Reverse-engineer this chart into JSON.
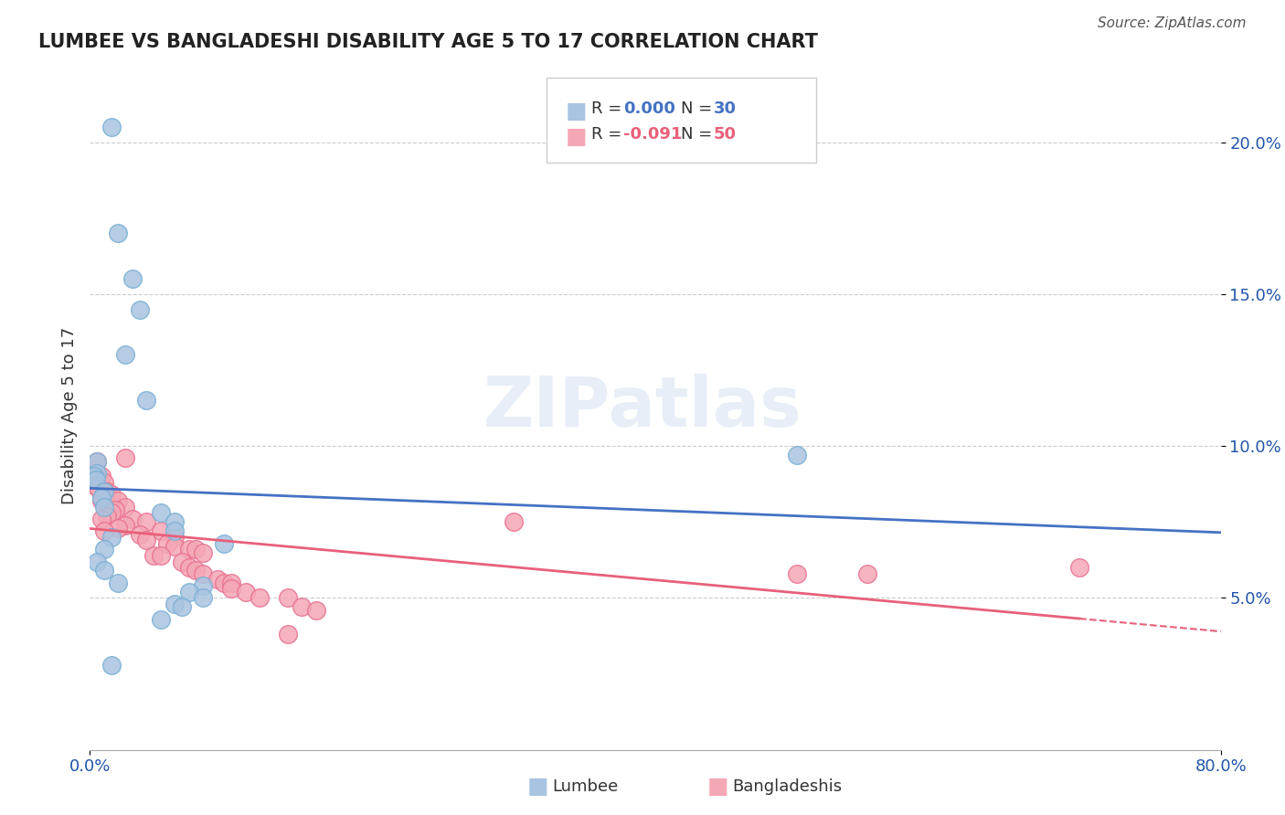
{
  "title": "LUMBEE VS BANGLADESHI DISABILITY AGE 5 TO 17 CORRELATION CHART",
  "source": "Source: ZipAtlas.com",
  "xlabel_label": "Lumbee",
  "xlabel_label2": "Bangladeshis",
  "ylabel": "Disability Age 5 to 17",
  "xlim": [
    0.0,
    0.8
  ],
  "ylim": [
    0.0,
    0.22
  ],
  "xticks": [
    0.0,
    0.1,
    0.2,
    0.3,
    0.4,
    0.5,
    0.6,
    0.7,
    0.8
  ],
  "xticklabels": [
    "0.0%",
    "",
    "",
    "",
    "",
    "",
    "",
    "",
    "80.0%"
  ],
  "yticks": [
    0.0,
    0.05,
    0.1,
    0.15,
    0.2
  ],
  "yticklabels": [
    "",
    "5.0%",
    "10.0%",
    "15.0%",
    "20.0%"
  ],
  "grid_color": "#cccccc",
  "background_color": "#ffffff",
  "lumbee_color": "#a8c4e0",
  "lumbee_edge_color": "#7aafd4",
  "bangladeshi_color": "#f4a7b5",
  "bangladeshi_edge_color": "#e87090",
  "trendline_lumbee_color": "#4472c4",
  "trendline_bangladeshi_color": "#e8607a",
  "R_lumbee": 0.0,
  "N_lumbee": 30,
  "R_bangladeshi": -0.091,
  "N_bangladeshi": 50,
  "lumbee_points": [
    [
      0.015,
      0.205
    ],
    [
      0.02,
      0.17
    ],
    [
      0.03,
      0.155
    ],
    [
      0.035,
      0.145
    ],
    [
      0.025,
      0.13
    ],
    [
      0.04,
      0.115
    ],
    [
      0.005,
      0.095
    ],
    [
      0.005,
      0.091
    ],
    [
      0.003,
      0.09
    ],
    [
      0.004,
      0.089
    ],
    [
      0.01,
      0.085
    ],
    [
      0.008,
      0.083
    ],
    [
      0.01,
      0.08
    ],
    [
      0.05,
      0.078
    ],
    [
      0.06,
      0.075
    ],
    [
      0.06,
      0.072
    ],
    [
      0.015,
      0.07
    ],
    [
      0.095,
      0.068
    ],
    [
      0.01,
      0.066
    ],
    [
      0.005,
      0.062
    ],
    [
      0.01,
      0.059
    ],
    [
      0.02,
      0.055
    ],
    [
      0.08,
      0.054
    ],
    [
      0.07,
      0.052
    ],
    [
      0.08,
      0.05
    ],
    [
      0.06,
      0.048
    ],
    [
      0.065,
      0.047
    ],
    [
      0.05,
      0.043
    ],
    [
      0.015,
      0.028
    ],
    [
      0.5,
      0.097
    ]
  ],
  "bangladeshi_points": [
    [
      0.005,
      0.095
    ],
    [
      0.008,
      0.09
    ],
    [
      0.01,
      0.088
    ],
    [
      0.003,
      0.087
    ],
    [
      0.006,
      0.086
    ],
    [
      0.012,
      0.085
    ],
    [
      0.015,
      0.084
    ],
    [
      0.01,
      0.083
    ],
    [
      0.008,
      0.082
    ],
    [
      0.02,
      0.082
    ],
    [
      0.025,
      0.08
    ],
    [
      0.018,
      0.079
    ],
    [
      0.015,
      0.078
    ],
    [
      0.012,
      0.077
    ],
    [
      0.008,
      0.076
    ],
    [
      0.03,
      0.076
    ],
    [
      0.04,
      0.075
    ],
    [
      0.025,
      0.074
    ],
    [
      0.02,
      0.073
    ],
    [
      0.01,
      0.072
    ],
    [
      0.05,
      0.072
    ],
    [
      0.035,
      0.071
    ],
    [
      0.06,
      0.07
    ],
    [
      0.04,
      0.069
    ],
    [
      0.055,
      0.068
    ],
    [
      0.06,
      0.067
    ],
    [
      0.07,
      0.066
    ],
    [
      0.075,
      0.066
    ],
    [
      0.08,
      0.065
    ],
    [
      0.045,
      0.064
    ],
    [
      0.05,
      0.064
    ],
    [
      0.065,
      0.062
    ],
    [
      0.07,
      0.06
    ],
    [
      0.075,
      0.059
    ],
    [
      0.08,
      0.058
    ],
    [
      0.09,
      0.056
    ],
    [
      0.095,
      0.055
    ],
    [
      0.1,
      0.055
    ],
    [
      0.025,
      0.096
    ],
    [
      0.1,
      0.053
    ],
    [
      0.11,
      0.052
    ],
    [
      0.12,
      0.05
    ],
    [
      0.14,
      0.05
    ],
    [
      0.15,
      0.047
    ],
    [
      0.16,
      0.046
    ],
    [
      0.3,
      0.075
    ],
    [
      0.5,
      0.058
    ],
    [
      0.55,
      0.058
    ],
    [
      0.7,
      0.06
    ],
    [
      0.14,
      0.038
    ]
  ]
}
